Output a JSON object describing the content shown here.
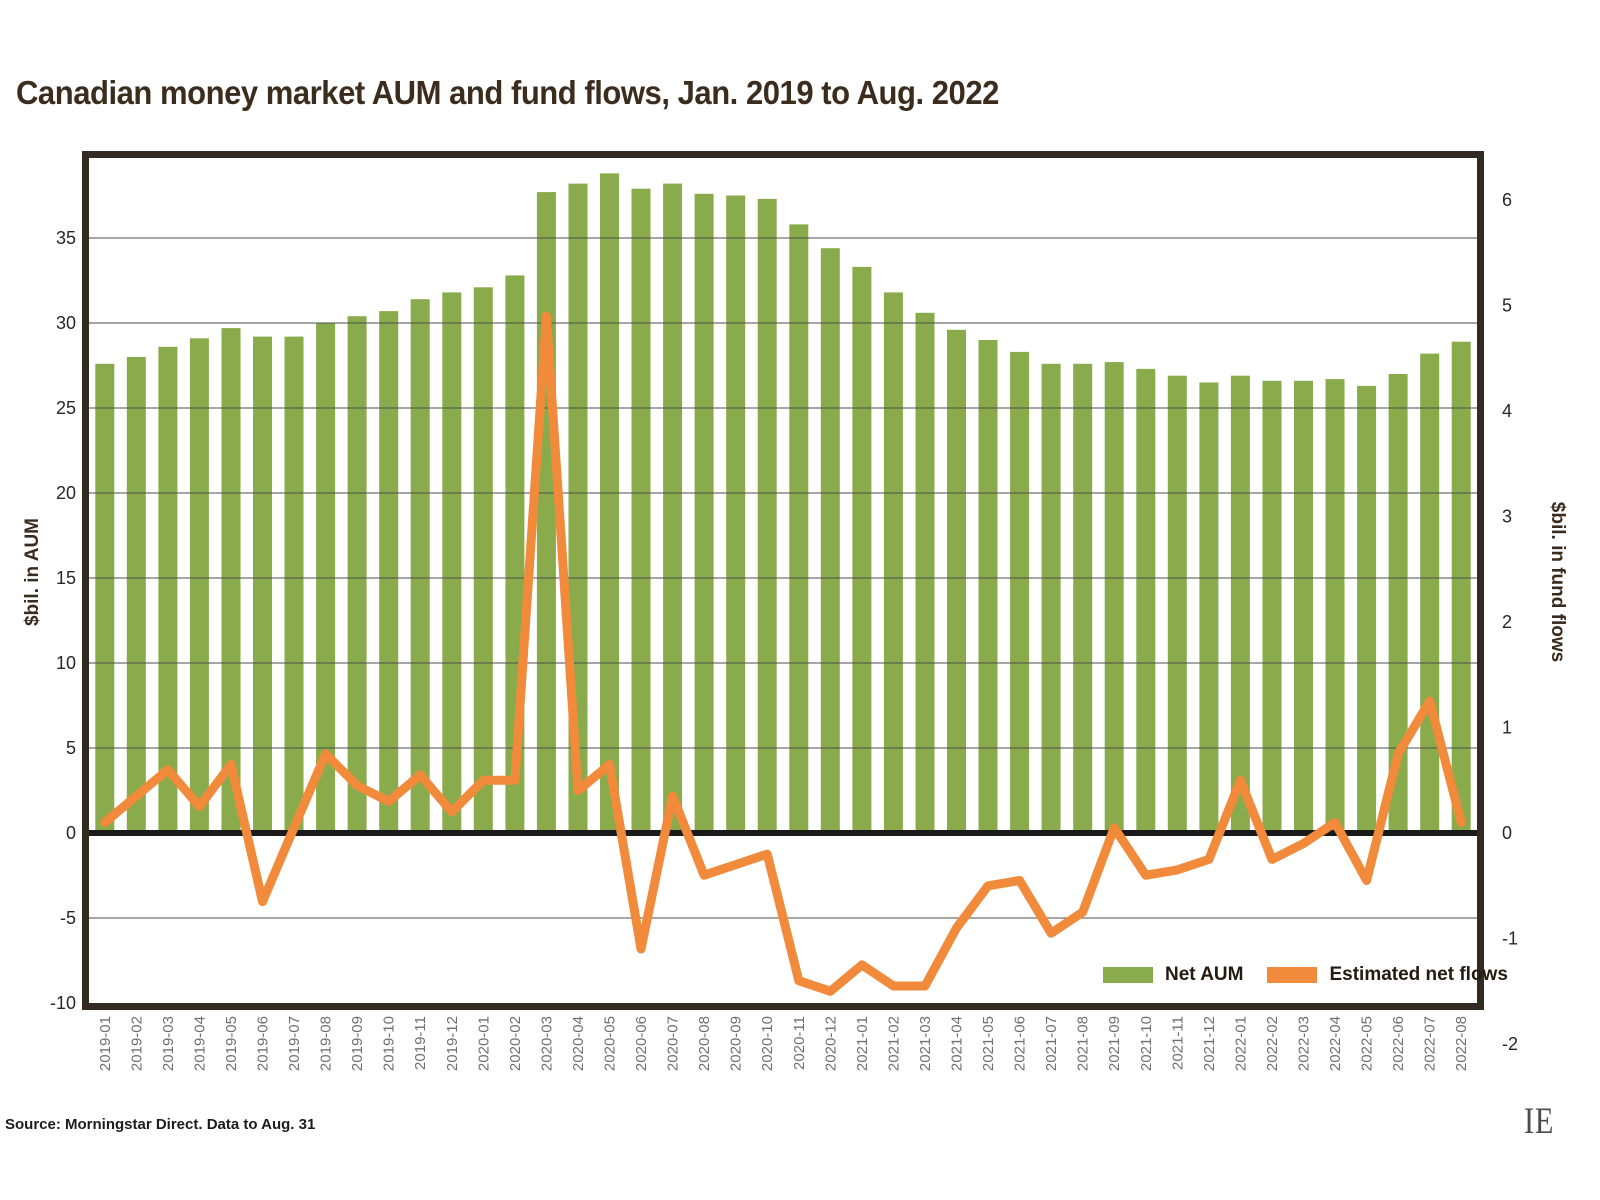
{
  "title": "Canadian money market AUM and fund flows, Jan. 2019 to Aug. 2022",
  "source": "Source: Morningstar Direct. Data to Aug. 31",
  "logo": "IE",
  "legend": {
    "aum_label": "Net AUM",
    "flows_label": "Estimated net flows"
  },
  "axes": {
    "left_title": "$bil. in AUM",
    "right_title": "$bil. in fund flows",
    "left_ticks": [
      35,
      30,
      25,
      20,
      15,
      10,
      5,
      0,
      -5,
      -10
    ],
    "right_ticks": [
      6,
      5,
      4,
      3,
      2,
      1,
      0,
      -1,
      -2
    ]
  },
  "colors": {
    "bar": "#8aab4b",
    "line": "#f28a3c",
    "frame": "#332a21",
    "grid": "#4d4d4d",
    "zero": "#1a1a1a",
    "title": "#3b2c1e",
    "xtick": "#6f6f6f",
    "ytick": "#272727"
  },
  "chart_data": {
    "type": "bar",
    "subtype": "bar+line combo, dual axis",
    "title": "Canadian money market AUM and fund flows, Jan. 2019 to Aug. 2022",
    "categories": [
      "2019-01",
      "2019-02",
      "2019-03",
      "2019-04",
      "2019-05",
      "2019-06",
      "2019-07",
      "2019-08",
      "2019-09",
      "2019-10",
      "2019-11",
      "2019-12",
      "2020-01",
      "2020-02",
      "2020-03",
      "2020-04",
      "2020-05",
      "2020-06",
      "2020-07",
      "2020-08",
      "2020-09",
      "2020-10",
      "2020-11",
      "2020-12",
      "2021-01",
      "2021-02",
      "2021-03",
      "2021-04",
      "2021-05",
      "2021-06",
      "2021-07",
      "2021-08",
      "2021-09",
      "2021-10",
      "2021-11",
      "2021-12",
      "2022-01",
      "2022-02",
      "2022-03",
      "2022-04",
      "2022-05",
      "2022-06",
      "2022-07",
      "2022-08"
    ],
    "series": [
      {
        "name": "Net AUM",
        "type": "bar",
        "axis": "left",
        "values": [
          27.6,
          28.0,
          28.6,
          29.1,
          29.7,
          29.2,
          29.2,
          30.0,
          30.4,
          30.7,
          31.4,
          31.8,
          32.1,
          32.8,
          37.7,
          38.2,
          38.8,
          37.9,
          38.2,
          37.6,
          37.5,
          37.3,
          35.8,
          34.4,
          33.3,
          31.8,
          30.6,
          29.6,
          29.0,
          28.3,
          27.6,
          27.6,
          27.7,
          27.3,
          26.9,
          26.5,
          26.9,
          26.6,
          26.6,
          26.7,
          26.3,
          27.0,
          28.2,
          28.9
        ]
      },
      {
        "name": "Estimated net flows",
        "type": "line",
        "axis": "right",
        "values": [
          0.1,
          0.35,
          0.6,
          0.25,
          0.65,
          -0.65,
          0.05,
          0.75,
          0.45,
          0.3,
          0.55,
          0.2,
          0.5,
          0.5,
          4.9,
          0.4,
          0.65,
          -1.1,
          0.35,
          -0.4,
          -0.3,
          -0.2,
          -1.4,
          -1.5,
          -1.25,
          -1.45,
          -1.45,
          -0.9,
          -0.5,
          -0.45,
          -0.95,
          -0.75,
          0.05,
          -0.4,
          -0.35,
          -0.25,
          0.5,
          -0.25,
          -0.1,
          0.1,
          -0.45,
          0.75,
          1.25,
          0.1
        ]
      }
    ],
    "left_axis": {
      "label": "$bil. in AUM",
      "ticks": [
        35,
        30,
        25,
        20,
        15,
        10,
        5,
        0,
        -5,
        -10
      ],
      "min": -10,
      "max": 39.7
    },
    "right_axis": {
      "label": "$bil. in fund flows",
      "ticks": [
        6,
        5,
        4,
        3,
        2,
        1,
        0,
        -1,
        -2
      ],
      "min": -1.6,
      "max": 6.4,
      "zero_aligned_with_left_zero": true
    },
    "grid": true,
    "legend_position": "inside bottom-right"
  }
}
